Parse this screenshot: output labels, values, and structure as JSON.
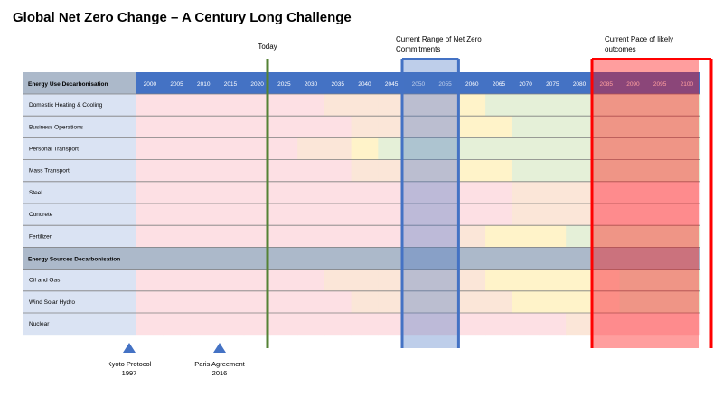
{
  "title": "Global Net Zero Change – A Century Long Challenge",
  "chart_data": {
    "type": "heatmap",
    "title": "Global Net Zero Change – A Century Long Challenge",
    "years": [
      "2000",
      "2005",
      "2010",
      "2015",
      "2020",
      "2025",
      "2030",
      "2035",
      "2040",
      "2045",
      "2050",
      "2055",
      "2060",
      "2065",
      "2070",
      "2075",
      "2080",
      "2085",
      "2090",
      "2095",
      "2100"
    ],
    "sections": [
      {
        "header": "Energy Use Decarbonisation",
        "rows": [
          {
            "label": "Domestic Heating & Cooling",
            "stages": [
              "red",
              "red",
              "red",
              "red",
              "red",
              "red",
              "red",
              "orange",
              "orange",
              "orange",
              "orange",
              "orange",
              "yellow",
              "green",
              "green",
              "green",
              "green",
              "green",
              "green",
              "green",
              "green"
            ]
          },
          {
            "label": "Business Operations",
            "stages": [
              "red",
              "red",
              "red",
              "red",
              "red",
              "red",
              "red",
              "red",
              "orange",
              "orange",
              "orange",
              "orange",
              "yellow",
              "yellow",
              "green",
              "green",
              "green",
              "green",
              "green",
              "green",
              "green"
            ]
          },
          {
            "label": "Personal Transport",
            "stages": [
              "red",
              "red",
              "red",
              "red",
              "red",
              "red",
              "orange",
              "orange",
              "yellow",
              "green",
              "green",
              "green",
              "green",
              "green",
              "green",
              "green",
              "green",
              "green",
              "green",
              "green",
              "green"
            ]
          },
          {
            "label": "Mass Transport",
            "stages": [
              "red",
              "red",
              "red",
              "red",
              "red",
              "red",
              "red",
              "red",
              "orange",
              "orange",
              "orange",
              "orange",
              "yellow",
              "yellow",
              "green",
              "green",
              "green",
              "green",
              "green",
              "green",
              "green"
            ]
          },
          {
            "label": "Steel",
            "stages": [
              "red",
              "red",
              "red",
              "red",
              "red",
              "red",
              "red",
              "red",
              "red",
              "red",
              "red",
              "red",
              "red",
              "red",
              "orange",
              "orange",
              "orange",
              "red",
              "red",
              "red",
              "red"
            ]
          },
          {
            "label": "Concrete",
            "stages": [
              "red",
              "red",
              "red",
              "red",
              "red",
              "red",
              "red",
              "red",
              "red",
              "red",
              "red",
              "red",
              "red",
              "red",
              "orange",
              "orange",
              "orange",
              "red",
              "red",
              "red",
              "red"
            ]
          },
          {
            "label": "Fertilizer",
            "stages": [
              "red",
              "red",
              "red",
              "red",
              "red",
              "red",
              "red",
              "red",
              "red",
              "red",
              "red",
              "red",
              "orange",
              "yellow",
              "yellow",
              "yellow",
              "green",
              "green",
              "green",
              "green",
              "green"
            ]
          }
        ]
      },
      {
        "header": "Energy Sources Decarbonisation",
        "rows": [
          {
            "label": "Oil and Gas",
            "stages": [
              "red",
              "red",
              "red",
              "red",
              "red",
              "red",
              "red",
              "orange",
              "orange",
              "orange",
              "orange",
              "orange",
              "orange",
              "yellow",
              "yellow",
              "yellow",
              "yellow",
              "orange",
              "green",
              "green",
              "green"
            ]
          },
          {
            "label": "Wind Solar Hydro",
            "stages": [
              "red",
              "red",
              "red",
              "red",
              "red",
              "red",
              "red",
              "red",
              "orange",
              "orange",
              "orange",
              "orange",
              "orange",
              "orange",
              "yellow",
              "yellow",
              "yellow",
              "orange",
              "green",
              "green",
              "green"
            ]
          },
          {
            "label": "Nuclear",
            "stages": [
              "red",
              "red",
              "red",
              "red",
              "red",
              "red",
              "red",
              "red",
              "red",
              "red",
              "red",
              "red",
              "red",
              "red",
              "red",
              "red",
              "orange",
              "red",
              "red",
              "red",
              "red"
            ]
          }
        ]
      }
    ],
    "stage_colors": {
      "red": "#fde0e4",
      "orange": "#fbe6d8",
      "yellow": "#fff3c9",
      "green": "#e5f0d8"
    },
    "header_color": "#4472c4",
    "section_header_color": "#acb9ca",
    "label_col_color": "#dae3f3",
    "markers": [
      {
        "label": "Today",
        "year": 2023,
        "color": "#548235"
      },
      {
        "label": "Current Range of Net Zero Commitments",
        "from": 2050,
        "to": 2060,
        "color": "#4472c4"
      },
      {
        "label": "Current Pace of likely outcomes",
        "from": 2085,
        "to": 2110,
        "color": "#ff0000"
      }
    ],
    "events": [
      {
        "label": "Kyoto Protocol",
        "year_text": "1997",
        "year": 1997
      },
      {
        "label": "Paris Agreement",
        "year_text": "2016",
        "year": 2016
      }
    ]
  }
}
